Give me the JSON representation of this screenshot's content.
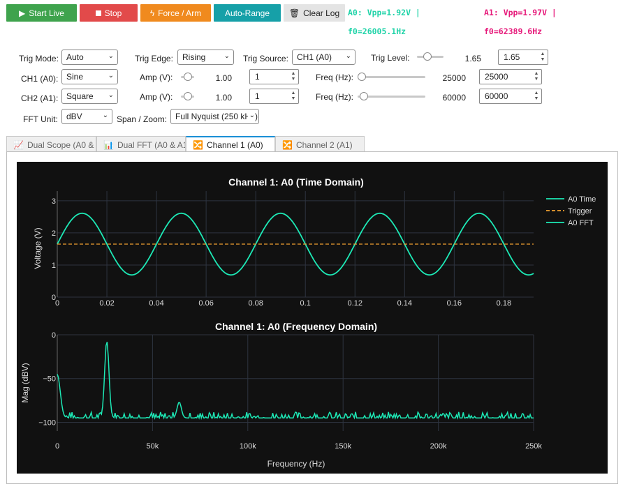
{
  "toolbar": {
    "start_label": "Start Live",
    "stop_label": "Stop",
    "force_label": "Force / Arm",
    "autorange_label": "Auto-Range",
    "clear_label": "Clear Log"
  },
  "status": {
    "a0_vpp": "A0: Vpp=1.92V |",
    "a0_freq": "f0=26005.1Hz",
    "a1_vpp": "A1: Vpp=1.97V |",
    "a1_freq": "f0=62389.6Hz"
  },
  "controls": {
    "trig_mode_label": "Trig Mode:",
    "trig_mode_value": "Auto",
    "trig_edge_label": "Trig Edge:",
    "trig_edge_value": "Rising",
    "trig_source_label": "Trig Source:",
    "trig_source_value": "CH1 (A0)",
    "trig_level_label": "Trig Level:",
    "trig_level_display": "1.65",
    "trig_level_input": "1.65",
    "trig_level_fraction": 0.33,
    "ch1_label": "CH1 (A0):",
    "ch1_wave": "Sine",
    "ch1_amp_label": "Amp (V):",
    "ch1_amp_display": "1.00",
    "ch1_amp_input": "1",
    "ch1_amp_fraction": 0.5,
    "ch1_freq_label": "Freq (Hz):",
    "ch1_freq_display": "25000",
    "ch1_freq_input": "25000",
    "ch1_freq_fraction": 0.0,
    "ch2_label": "CH2 (A1):",
    "ch2_wave": "Square",
    "ch2_amp_label": "Amp (V):",
    "ch2_amp_display": "1.00",
    "ch2_amp_input": "1",
    "ch2_amp_fraction": 0.5,
    "ch2_freq_label": "Freq (Hz):",
    "ch2_freq_display": "60000",
    "ch2_freq_input": "60000",
    "ch2_freq_fraction": 0.04,
    "fft_unit_label": "FFT Unit:",
    "fft_unit_value": "dBV",
    "span_label": "Span / Zoom:",
    "span_value": "Full Nyquist (250 kHz)"
  },
  "tabs": [
    {
      "icon": "📈",
      "label": "Dual Scope (A0 & A1)",
      "active": false
    },
    {
      "icon": "📊",
      "label": "Dual FFT (A0 & A1)",
      "active": false
    },
    {
      "icon": "🔀",
      "label": "Channel 1 (A0)",
      "active": true
    },
    {
      "icon": "🔀",
      "label": "Channel 2 (A1)",
      "active": false
    }
  ],
  "colors": {
    "trace": "#1de9b6",
    "trigger": "#f0a030",
    "plot_bg": "#111111",
    "grid": "#2e3440"
  },
  "chart_data": [
    {
      "type": "line",
      "title": "Channel 1: A0 (Time Domain)",
      "xlabel": "",
      "ylabel": "Voltage (V)",
      "xlim": [
        0,
        0.192
      ],
      "ylim": [
        0,
        3.3
      ],
      "x_ticks": [
        "0",
        "0.02",
        "0.04",
        "0.06",
        "0.08",
        "0.1",
        "0.12",
        "0.14",
        "0.16",
        "0.18"
      ],
      "y_ticks": [
        "0",
        "1",
        "2",
        "3"
      ],
      "series": [
        {
          "name": "A0 Time",
          "kind": "sine",
          "offset": 1.65,
          "amplitude": 0.96,
          "period": 0.04,
          "phase_peak_at": 0.01
        },
        {
          "name": "Trigger",
          "kind": "hline",
          "value": 1.65,
          "style": "dashed"
        }
      ],
      "legend": [
        "A0 Time",
        "Trigger",
        "A0 FFT"
      ],
      "legend_position": "top-right",
      "grid": true
    },
    {
      "type": "line",
      "title": "Channel 1: A0 (Frequency Domain)",
      "xlabel": "Frequency (Hz)",
      "ylabel": "Mag (dBV)",
      "xlim": [
        0,
        250000
      ],
      "ylim": [
        -110,
        0
      ],
      "x_ticks": [
        "0",
        "50k",
        "100k",
        "150k",
        "200k",
        "250k"
      ],
      "y_ticks": [
        "0",
        "−50",
        "−100"
      ],
      "series": [
        {
          "name": "A0 FFT",
          "noise_floor_db": -95,
          "peaks": [
            {
              "freq": 0,
              "db": -45
            },
            {
              "freq": 26000,
              "db": -7
            },
            {
              "freq": 64000,
              "db": -77
            }
          ]
        }
      ],
      "grid": true
    }
  ]
}
